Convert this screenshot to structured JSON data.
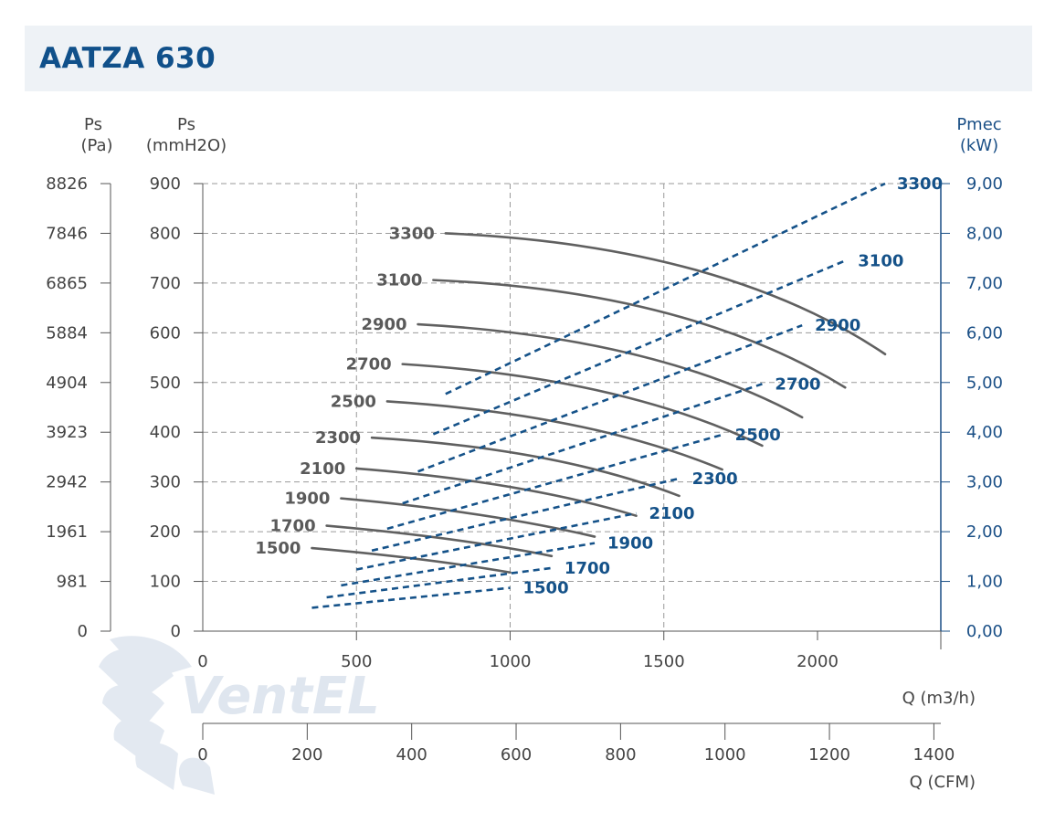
{
  "header": {
    "title": "AATZA 630"
  },
  "watermark": {
    "text": "VentEL"
  },
  "chart_data": {
    "type": "line",
    "x_label": "Q (m3/h)",
    "x2_label": "Q (CFM)",
    "y_label_pa": {
      "name": "Ps",
      "unit": "(Pa)"
    },
    "y_label_mm": {
      "name": "Ps",
      "unit": "(mmH2O)"
    },
    "y2_label": {
      "name": "Pmec",
      "unit": "(kW)"
    },
    "xlim": [
      0,
      2400
    ],
    "ylim": [
      0,
      900
    ],
    "y2lim": [
      0,
      9
    ],
    "x_ticks": [
      "0",
      "500",
      "1000",
      "1500",
      "2000"
    ],
    "x_tick_values": [
      0,
      500,
      1000,
      1500,
      2000
    ],
    "cfm_ticks": [
      "0",
      "200",
      "400",
      "600",
      "800",
      "1000",
      "1200",
      "1400"
    ],
    "cfm_tick_values": [
      0,
      200,
      400,
      600,
      800,
      1000,
      1200,
      1400
    ],
    "y_ticks_pa": [
      "0",
      "981",
      "1961",
      "2942",
      "3923",
      "4904",
      "5884",
      "6865",
      "7846",
      "8826"
    ],
    "y_ticks_mm": [
      "0",
      "100",
      "200",
      "300",
      "400",
      "500",
      "600",
      "700",
      "800",
      "900"
    ],
    "y_tick_values": [
      0,
      100,
      200,
      300,
      400,
      500,
      600,
      700,
      800,
      900
    ],
    "y2_ticks": [
      "0,00",
      "1,00",
      "2,00",
      "3,00",
      "4,00",
      "5,00",
      "6,00",
      "7,00",
      "8,00",
      "9,00"
    ],
    "grid": true,
    "pressure_series": [
      {
        "name": "1500",
        "points": [
          [
            355,
            167
          ],
          [
            700,
            145
          ],
          [
            1000,
            118
          ]
        ]
      },
      {
        "name": "1700",
        "points": [
          [
            403,
            212
          ],
          [
            800,
            185
          ],
          [
            1135,
            151
          ]
        ]
      },
      {
        "name": "1900",
        "points": [
          [
            450,
            267
          ],
          [
            900,
            234
          ],
          [
            1275,
            190
          ]
        ]
      },
      {
        "name": "2100",
        "points": [
          [
            500,
            327
          ],
          [
            1000,
            290
          ],
          [
            1410,
            232
          ]
        ]
      },
      {
        "name": "2300",
        "points": [
          [
            550,
            389
          ],
          [
            1100,
            349
          ],
          [
            1550,
            272
          ]
        ]
      },
      {
        "name": "2500",
        "points": [
          [
            600,
            462
          ],
          [
            1200,
            415
          ],
          [
            1690,
            325
          ]
        ]
      },
      {
        "name": "2700",
        "points": [
          [
            650,
            537
          ],
          [
            1300,
            482
          ],
          [
            1820,
            373
          ]
        ]
      },
      {
        "name": "2900",
        "points": [
          [
            700,
            617
          ],
          [
            1400,
            557
          ],
          [
            1950,
            430
          ]
        ]
      },
      {
        "name": "3100",
        "points": [
          [
            750,
            706
          ],
          [
            1500,
            641
          ],
          [
            2090,
            490
          ]
        ]
      },
      {
        "name": "3300",
        "points": [
          [
            790,
            800
          ],
          [
            1600,
            727
          ],
          [
            2220,
            557
          ]
        ]
      }
    ],
    "power_series": [
      {
        "name": "1500",
        "points": [
          [
            355,
            0.47
          ],
          [
            1000,
            0.87
          ]
        ]
      },
      {
        "name": "1700",
        "points": [
          [
            403,
            0.68
          ],
          [
            1135,
            1.27
          ]
        ]
      },
      {
        "name": "1900",
        "points": [
          [
            450,
            0.92
          ],
          [
            1275,
            1.77
          ]
        ]
      },
      {
        "name": "2100",
        "points": [
          [
            500,
            1.24
          ],
          [
            1410,
            2.37
          ]
        ]
      },
      {
        "name": "2300",
        "points": [
          [
            550,
            1.62
          ],
          [
            1550,
            3.07
          ]
        ]
      },
      {
        "name": "2500",
        "points": [
          [
            600,
            2.06
          ],
          [
            1690,
            3.95
          ]
        ]
      },
      {
        "name": "2700",
        "points": [
          [
            650,
            2.57
          ],
          [
            1820,
            4.97
          ]
        ]
      },
      {
        "name": "2900",
        "points": [
          [
            700,
            3.21
          ],
          [
            1950,
            6.15
          ]
        ]
      },
      {
        "name": "3100",
        "points": [
          [
            750,
            3.96
          ],
          [
            2090,
            7.45
          ]
        ]
      },
      {
        "name": "3300",
        "points": [
          [
            790,
            4.77
          ],
          [
            2220,
            9.0
          ]
        ]
      }
    ]
  }
}
